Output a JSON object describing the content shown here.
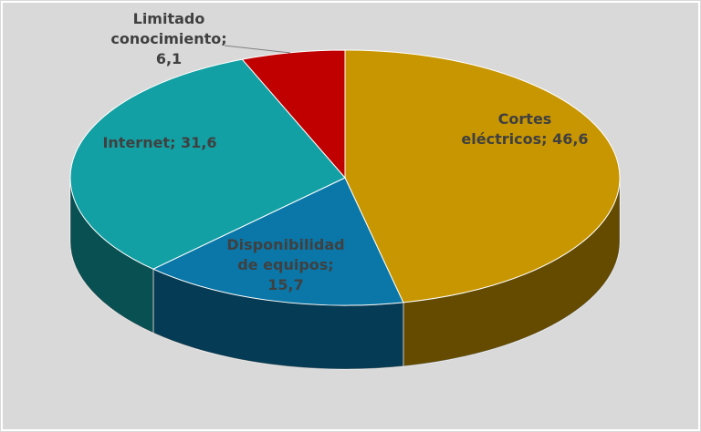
{
  "chart_data": {
    "type": "pie3d",
    "values": [
      46.6,
      15.7,
      31.6,
      6.1
    ],
    "value_labels": [
      "Cortes eléctricos; 46,6",
      "Disponibilidad de equipos; 15,7",
      "Internet; 31,6",
      "Limitado conocimiento; 6,1"
    ],
    "colors": [
      "#c89600",
      "#0a77a8",
      "#12a0a4",
      "#c00000"
    ]
  }
}
